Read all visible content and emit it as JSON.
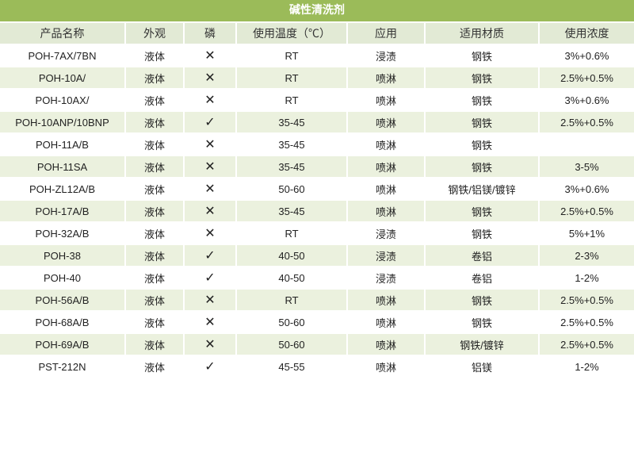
{
  "title": "碱性清洗剂",
  "colors": {
    "header": "#9bbb59",
    "header_row": "#e2ead5",
    "stripe": "#ebf1de"
  },
  "columns": [
    "产品名称",
    "外观",
    "磷",
    "使用温度（℃）",
    "应用",
    "适用材质",
    "使用浓度"
  ],
  "rows": [
    [
      "POH-7AX/7BN",
      "液体",
      "✕",
      "RT",
      "浸渍",
      "钢铁",
      "3%+0.6%"
    ],
    [
      "POH-10A/",
      "液体",
      "✕",
      "RT",
      "喷淋",
      "钢铁",
      "2.5%+0.5%"
    ],
    [
      "POH-10AX/",
      "液体",
      "✕",
      "RT",
      "喷淋",
      "钢铁",
      "3%+0.6%"
    ],
    [
      "POH-10ANP/10BNP",
      "液体",
      "✓",
      "35-45",
      "喷淋",
      "钢铁",
      "2.5%+0.5%"
    ],
    [
      "POH-11A/B",
      "液体",
      "✕",
      "35-45",
      "喷淋",
      "钢铁",
      ""
    ],
    [
      "POH-11SA",
      "液体",
      "✕",
      "35-45",
      "喷淋",
      "钢铁",
      "3-5%"
    ],
    [
      "POH-ZL12A/B",
      "液体",
      "✕",
      "50-60",
      "喷淋",
      "钢铁/铝镁/镀锌",
      "3%+0.6%"
    ],
    [
      "POH-17A/B",
      "液体",
      "✕",
      "35-45",
      "喷淋",
      "钢铁",
      "2.5%+0.5%"
    ],
    [
      "POH-32A/B",
      "液体",
      "✕",
      "RT",
      "浸渍",
      "钢铁",
      "5%+1%"
    ],
    [
      "POH-38",
      "液体",
      "✓",
      "40-50",
      "浸渍",
      "卷铝",
      "2-3%"
    ],
    [
      "POH-40",
      "液体",
      "✓",
      "40-50",
      "浸渍",
      "卷铝",
      "1-2%"
    ],
    [
      "POH-56A/B",
      "液体",
      "✕",
      "RT",
      "喷淋",
      "钢铁",
      "2.5%+0.5%"
    ],
    [
      "POH-68A/B",
      "液体",
      "✕",
      "50-60",
      "喷淋",
      "钢铁",
      "2.5%+0.5%"
    ],
    [
      "POH-69A/B",
      "液体",
      "✕",
      "50-60",
      "喷淋",
      "钢铁/镀锌",
      "2.5%+0.5%"
    ],
    [
      "PST-212N",
      "液体",
      "✓",
      "45-55",
      "喷淋",
      "铝镁",
      "1-2%"
    ]
  ]
}
